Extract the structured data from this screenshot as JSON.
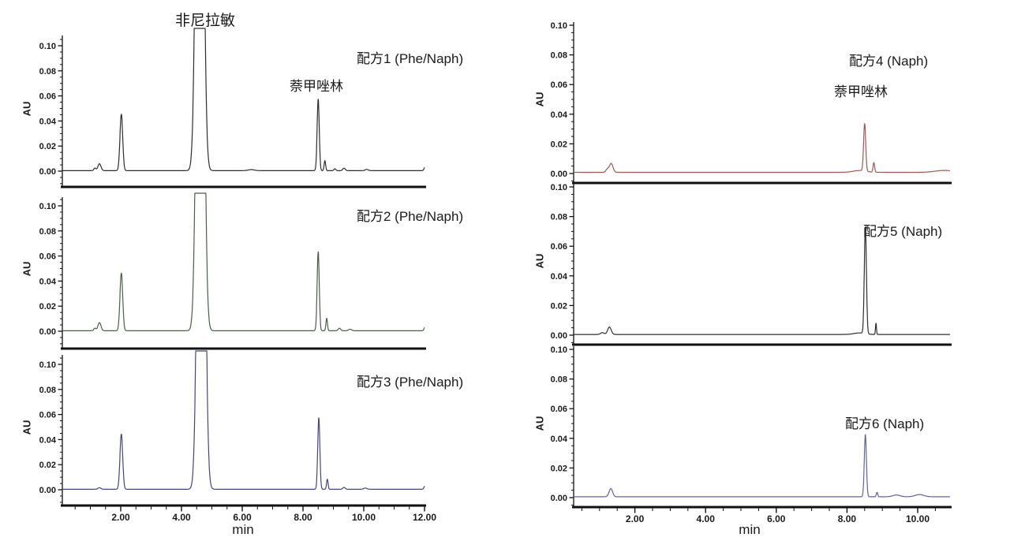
{
  "figure": {
    "background": "#ffffff",
    "annotations": {
      "pheniramine_label": "非尼拉敏",
      "naphazoline_label_left": "萘甲唑林",
      "naphazoline_label_right": "萘甲唑林"
    }
  },
  "chart_data": {
    "type": "line",
    "description": "Six HPLC chromatograms (AU vs min), two columns of three stacked plots",
    "charts": [
      {
        "id": "formulation-1",
        "title": "配方1 (Phe/Naph)",
        "color": "#2e2e2e",
        "ylabel": "AU",
        "xlabel": "",
        "ylim": [
          -0.013,
          0.108
        ],
        "xlim": [
          0,
          12.05
        ],
        "yticks": [
          "0.00",
          "0.02",
          "0.04",
          "0.06",
          "0.08",
          "0.10"
        ],
        "ytick_values": [
          0,
          0.02,
          0.04,
          0.06,
          0.08,
          0.1
        ],
        "xticks": [
          "2.00",
          "4.00",
          "6.00",
          "8.00",
          "10.00",
          "12.00"
        ],
        "xtick_values": [
          2,
          4,
          6,
          8,
          10,
          12
        ],
        "show_xaxis": false,
        "baseline": 0.0004,
        "peaks": [
          {
            "t": 1.15,
            "h": 0.002,
            "w": 0.035
          },
          {
            "t": 1.3,
            "h": 0.0055,
            "w": 0.05
          },
          {
            "t": 2.02,
            "h": 0.045,
            "w": 0.045
          },
          {
            "t": 4.6,
            "h": 0.6,
            "w": 0.1
          },
          {
            "t": 6.3,
            "h": 0.0008,
            "w": 0.1
          },
          {
            "t": 8.5,
            "h": 0.057,
            "w": 0.035
          },
          {
            "t": 8.72,
            "h": 0.008,
            "w": 0.025
          },
          {
            "t": 9.05,
            "h": 0.0015,
            "w": 0.03
          },
          {
            "t": 9.35,
            "h": 0.002,
            "w": 0.04
          },
          {
            "t": 10.1,
            "h": 0.001,
            "w": 0.05
          },
          {
            "t": 12.03,
            "h": 0.004,
            "w": 0.035
          }
        ]
      },
      {
        "id": "formulation-2",
        "title": "配方2 (Phe/Naph)",
        "color": "#4a5e4a",
        "ylabel": "AU",
        "xlabel": "",
        "ylim": [
          -0.013,
          0.108
        ],
        "xlim": [
          0,
          12.05
        ],
        "yticks": [
          "0.00",
          "0.02",
          "0.04",
          "0.06",
          "0.08",
          "0.10"
        ],
        "ytick_values": [
          0,
          0.02,
          0.04,
          0.06,
          0.08,
          0.1
        ],
        "xticks": [
          "2.00",
          "4.00",
          "6.00",
          "8.00",
          "10.00",
          "12.00"
        ],
        "xtick_values": [
          2,
          4,
          6,
          8,
          10,
          12
        ],
        "show_xaxis": false,
        "baseline": 0.0004,
        "peaks": [
          {
            "t": 1.15,
            "h": 0.002,
            "w": 0.035
          },
          {
            "t": 1.3,
            "h": 0.0065,
            "w": 0.05
          },
          {
            "t": 2.02,
            "h": 0.046,
            "w": 0.045
          },
          {
            "t": 4.62,
            "h": 0.6,
            "w": 0.1
          },
          {
            "t": 8.5,
            "h": 0.063,
            "w": 0.035
          },
          {
            "t": 8.78,
            "h": 0.01,
            "w": 0.025
          },
          {
            "t": 9.2,
            "h": 0.002,
            "w": 0.04
          },
          {
            "t": 9.55,
            "h": 0.0012,
            "w": 0.05
          },
          {
            "t": 12.03,
            "h": 0.004,
            "w": 0.035
          }
        ]
      },
      {
        "id": "formulation-3",
        "title": "配方3 (Phe/Naph)",
        "color": "#45457f",
        "ylabel": "AU",
        "xlabel": "min",
        "ylim": [
          -0.013,
          0.108
        ],
        "xlim": [
          0,
          12.05
        ],
        "yticks": [
          "0.00",
          "0.02",
          "0.04",
          "0.06",
          "0.08",
          "0.10"
        ],
        "ytick_values": [
          0,
          0.02,
          0.04,
          0.06,
          0.08,
          0.1
        ],
        "xticks": [
          "2.00",
          "4.00",
          "6.00",
          "8.00",
          "10.00",
          "12.00"
        ],
        "xtick_values": [
          2,
          4,
          6,
          8,
          10,
          12
        ],
        "show_xaxis": true,
        "baseline": 0.0004,
        "peaks": [
          {
            "t": 1.3,
            "h": 0.0012,
            "w": 0.05
          },
          {
            "t": 2.02,
            "h": 0.044,
            "w": 0.045
          },
          {
            "t": 4.65,
            "h": 0.6,
            "w": 0.1
          },
          {
            "t": 8.52,
            "h": 0.057,
            "w": 0.035
          },
          {
            "t": 8.8,
            "h": 0.008,
            "w": 0.025
          },
          {
            "t": 9.35,
            "h": 0.0015,
            "w": 0.04
          },
          {
            "t": 10.05,
            "h": 0.001,
            "w": 0.05
          },
          {
            "t": 12.03,
            "h": 0.004,
            "w": 0.035
          }
        ]
      },
      {
        "id": "formulation-4",
        "title": "配方4 (Naph)",
        "color": "#a05a52",
        "ylabel": "AU",
        "xlabel": "",
        "ylim": [
          -0.008,
          0.102
        ],
        "xlim": [
          0.25,
          10.95
        ],
        "yticks": [
          "0.00",
          "0.02",
          "0.04",
          "0.06",
          "0.08",
          "0.10"
        ],
        "ytick_values": [
          0,
          0.02,
          0.04,
          0.06,
          0.08,
          0.1
        ],
        "xticks": [
          "2.00",
          "4.00",
          "6.00",
          "8.00",
          "10.00"
        ],
        "xtick_values": [
          2,
          4,
          6,
          8,
          10
        ],
        "show_xaxis": false,
        "baseline": 0.0008,
        "peaks": [
          {
            "t": 1.22,
            "h": 0.002,
            "w": 0.04
          },
          {
            "t": 1.33,
            "h": 0.006,
            "w": 0.05
          },
          {
            "t": 8.35,
            "h": 0.0012,
            "w": 0.18
          },
          {
            "t": 8.5,
            "h": 0.032,
            "w": 0.03
          },
          {
            "t": 8.76,
            "h": 0.0065,
            "w": 0.022
          },
          {
            "t": 10.75,
            "h": 0.0013,
            "w": 0.25
          }
        ]
      },
      {
        "id": "formulation-5",
        "title": "配方5 (Naph)",
        "color": "#2e2e2e",
        "ylabel": "AU",
        "xlabel": "",
        "ylim": [
          -0.008,
          0.102
        ],
        "xlim": [
          0.25,
          10.95
        ],
        "yticks": [
          "0.00",
          "0.02",
          "0.04",
          "0.06",
          "0.08",
          "0.10"
        ],
        "ytick_values": [
          0,
          0.02,
          0.04,
          0.06,
          0.08,
          0.1
        ],
        "xticks": [
          "2.00",
          "4.00",
          "6.00",
          "8.00",
          "10.00"
        ],
        "xtick_values": [
          2,
          4,
          6,
          8,
          10
        ],
        "show_xaxis": false,
        "baseline": 0.0005,
        "peaks": [
          {
            "t": 1.08,
            "h": 0.0012,
            "w": 0.05
          },
          {
            "t": 1.28,
            "h": 0.005,
            "w": 0.05
          },
          {
            "t": 8.35,
            "h": 0.001,
            "w": 0.15
          },
          {
            "t": 8.52,
            "h": 0.072,
            "w": 0.03
          },
          {
            "t": 8.82,
            "h": 0.0075,
            "w": 0.014
          }
        ]
      },
      {
        "id": "formulation-6",
        "title": "配方6 (Naph)",
        "color": "#6062a8",
        "ylabel": "AU",
        "xlabel": "min",
        "ylim": [
          -0.008,
          0.102
        ],
        "xlim": [
          0.25,
          10.95
        ],
        "yticks": [
          "0.00",
          "0.02",
          "0.04",
          "0.06",
          "0.08",
          "0.10"
        ],
        "ytick_values": [
          0,
          0.02,
          0.04,
          0.06,
          0.08,
          0.1
        ],
        "xticks": [
          "2.00",
          "4.00",
          "6.00",
          "8.00",
          "10.00"
        ],
        "xtick_values": [
          2,
          4,
          6,
          8,
          10
        ],
        "show_xaxis": true,
        "baseline": 0.0006,
        "peaks": [
          {
            "t": 1.32,
            "h": 0.0055,
            "w": 0.05
          },
          {
            "t": 8.52,
            "h": 0.042,
            "w": 0.03
          },
          {
            "t": 8.85,
            "h": 0.003,
            "w": 0.02
          },
          {
            "t": 9.4,
            "h": 0.0012,
            "w": 0.1
          },
          {
            "t": 10.05,
            "h": 0.0015,
            "w": 0.12
          }
        ]
      }
    ]
  }
}
